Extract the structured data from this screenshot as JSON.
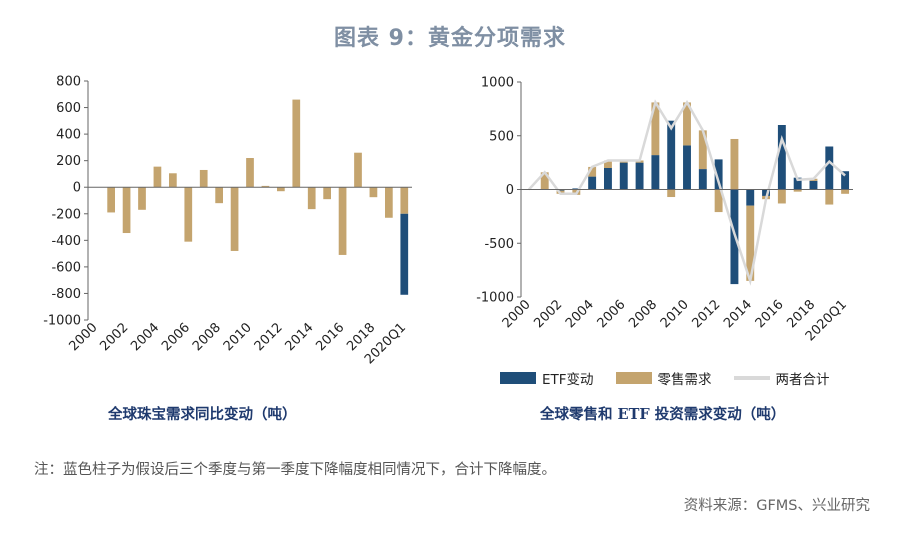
{
  "title": "图表 9：黄金分项需求",
  "note": "注：蓝色柱子为假设后三个季度与第一季度下降幅度相同情况下，合计下降幅度。",
  "source": "资料来源：GFMS、兴业研究",
  "colors": {
    "gold": "#c4a46e",
    "blue": "#1f4e79",
    "line": "#d9d9d9",
    "title": "#7f8fa3",
    "caption": "#1f3a6e"
  },
  "chart_data": [
    {
      "type": "bar",
      "title": "全球珠宝需求同比变动（吨）",
      "categories": [
        "2000",
        "2001",
        "2002",
        "2003",
        "2004",
        "2005",
        "2006",
        "2007",
        "2008",
        "2009",
        "2010",
        "2011",
        "2012",
        "2013",
        "2014",
        "2015",
        "2016",
        "2017",
        "2018",
        "2019",
        "2020Q1"
      ],
      "tick_labels": [
        "2000",
        "2002",
        "2004",
        "2006",
        "2008",
        "2010",
        "2012",
        "2014",
        "2016",
        "2018",
        "2020Q1"
      ],
      "ylim": [
        -1000,
        800
      ],
      "yticks": [
        -1000,
        -800,
        -600,
        -400,
        -200,
        0,
        200,
        400,
        600,
        800
      ],
      "series": [
        {
          "values": [
            0,
            -190,
            -345,
            -170,
            155,
            105,
            -410,
            130,
            -120,
            -480,
            220,
            10,
            -30,
            660,
            -165,
            -90,
            -510,
            260,
            -75,
            -230,
            -200
          ]
        },
        {
          "values": [
            0,
            0,
            0,
            0,
            0,
            0,
            0,
            0,
            0,
            0,
            0,
            0,
            0,
            0,
            0,
            0,
            0,
            0,
            0,
            0,
            -610
          ]
        }
      ]
    },
    {
      "type": "bar",
      "title": "全球零售和 ETF 投资需求变动（吨）",
      "categories": [
        "2000",
        "2001",
        "2002",
        "2003",
        "2004",
        "2005",
        "2006",
        "2007",
        "2008",
        "2009",
        "2010",
        "2011",
        "2012",
        "2013",
        "2014",
        "2015",
        "2016",
        "2017",
        "2018",
        "2019",
        "2020Q1"
      ],
      "tick_labels": [
        "2000",
        "2002",
        "2004",
        "2006",
        "2008",
        "2010",
        "2012",
        "2014",
        "2016",
        "2018",
        "2020Q1"
      ],
      "ylim": [
        -1000,
        1000
      ],
      "yticks": [
        -1000,
        -500,
        0,
        500,
        1000
      ],
      "series": [
        {
          "name": "ETF变动",
          "values": [
            0,
            0,
            -10,
            10,
            120,
            200,
            250,
            250,
            320,
            640,
            410,
            190,
            280,
            -880,
            -150,
            -60,
            600,
            110,
            80,
            400,
            170
          ]
        },
        {
          "name": "零售需求",
          "values": [
            0,
            160,
            -30,
            -50,
            90,
            70,
            20,
            20,
            490,
            -70,
            400,
            360,
            -210,
            470,
            -700,
            -30,
            -130,
            -20,
            20,
            -140,
            -40
          ]
        },
        {
          "name": "两者合计",
          "values": [
            0,
            160,
            -40,
            -40,
            210,
            270,
            270,
            270,
            810,
            570,
            810,
            550,
            70,
            -410,
            -850,
            -90,
            470,
            90,
            100,
            260,
            130
          ]
        }
      ]
    }
  ]
}
